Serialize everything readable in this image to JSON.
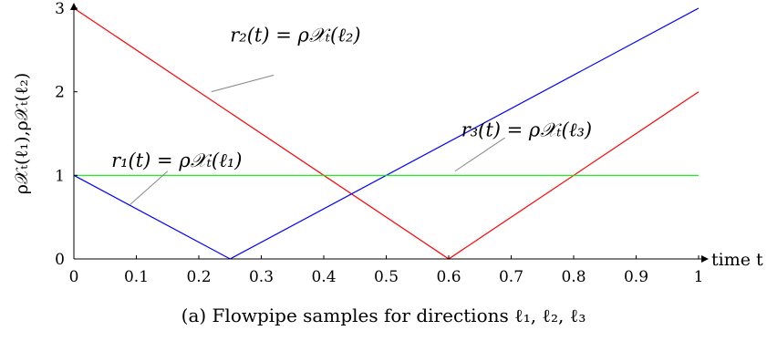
{
  "caption": "(a) Flowpipe samples for directions ℓ₁, ℓ₂, ℓ₃",
  "chart_data": {
    "type": "line",
    "xlabel": "time t",
    "ylabel": "ρ𝒳ₜ(ℓ₁),ρ𝒳ₜ(ℓ₂)",
    "xlim": [
      0,
      1
    ],
    "ylim": [
      0,
      3
    ],
    "x_ticks": [
      "0",
      "0.1",
      "0.2",
      "0.3",
      "0.4",
      "0.5",
      "0.6",
      "0.7",
      "0.8",
      "0.9",
      "1"
    ],
    "y_ticks": [
      "0",
      "1",
      "2",
      "3"
    ],
    "grid": false,
    "series": [
      {
        "color": "#ff0000",
        "points": [
          [
            0,
            3
          ],
          [
            0.6,
            0
          ],
          [
            1,
            2
          ]
        ]
      },
      {
        "color": "#0000ff",
        "points": [
          [
            0,
            1
          ],
          [
            0.25,
            0
          ],
          [
            1,
            3
          ]
        ]
      },
      {
        "color": "#00ee00",
        "points": [
          [
            0,
            1
          ],
          [
            1,
            1
          ]
        ]
      }
    ],
    "annotations": [
      {
        "text": "r₂(t) = ρ𝒳ₜ(ℓ₂)",
        "at": [
          0.25,
          2.6
        ],
        "pointer_from": [
          0.32,
          2.2
        ],
        "pointer_to": [
          0.22,
          2.0
        ]
      },
      {
        "text": "r₁(t) = ρ𝒳ₜ(ℓ₁)",
        "at": [
          0.06,
          1.1
        ],
        "pointer_from": [
          0.15,
          1.05
        ],
        "pointer_to": [
          0.09,
          0.65
        ]
      },
      {
        "text": "r₃(t) = ρ𝒳ₜ(ℓ₃)",
        "at": [
          0.62,
          1.47
        ],
        "pointer_from": [
          0.69,
          1.45
        ],
        "pointer_to": [
          0.61,
          1.05
        ]
      }
    ]
  }
}
